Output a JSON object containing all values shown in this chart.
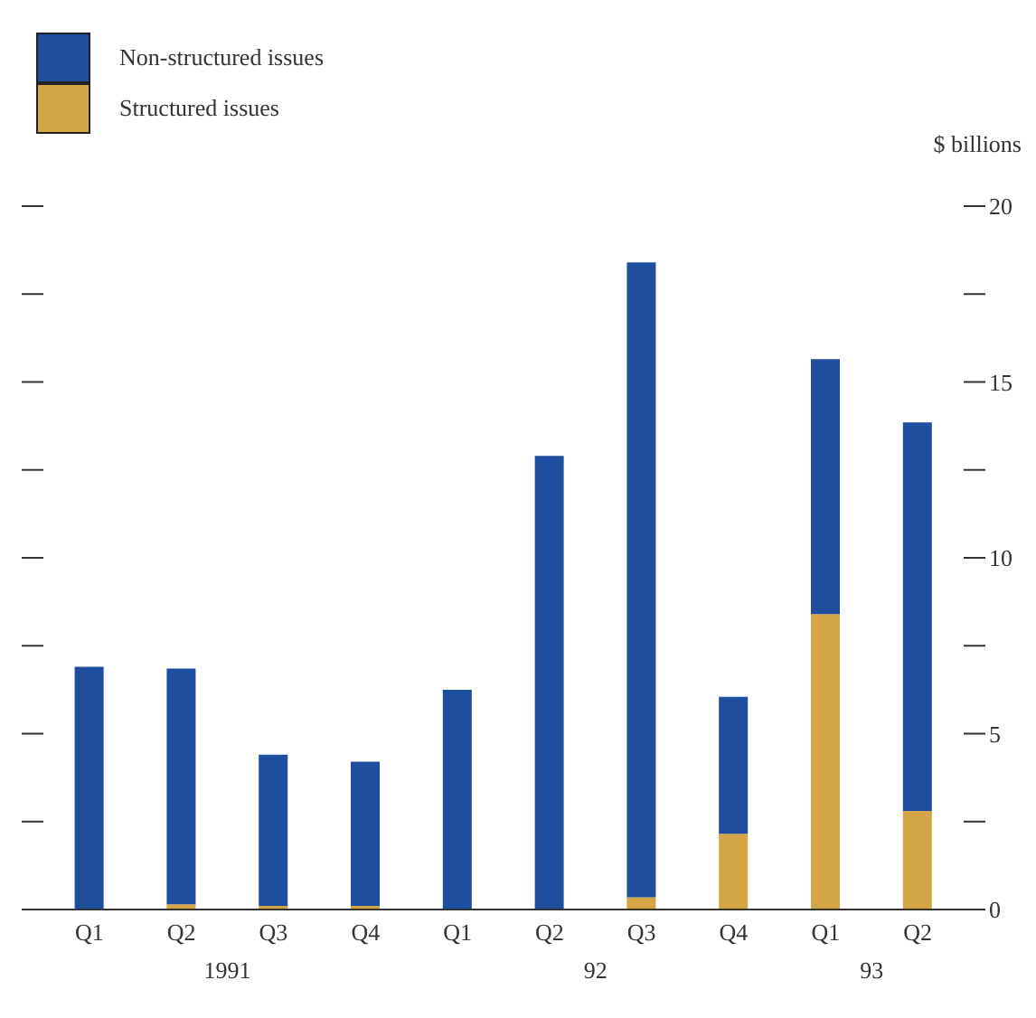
{
  "chart_data": {
    "type": "bar",
    "stacked": true,
    "ylabel": "$ billions",
    "categories": [
      "Q1",
      "Q2",
      "Q3",
      "Q4",
      "Q1",
      "Q2",
      "Q3",
      "Q4",
      "Q1",
      "Q2"
    ],
    "series": [
      {
        "name": "Structured issues",
        "color": "#d4a544",
        "values": [
          0,
          0.15,
          0.1,
          0.1,
          0,
          0,
          0.35,
          2.15,
          8.4,
          2.8
        ]
      },
      {
        "name": "Non-structured issues",
        "color": "#1f4e9e",
        "values": [
          6.9,
          6.7,
          4.3,
          4.1,
          6.25,
          12.9,
          18.05,
          3.9,
          7.25,
          11.05
        ]
      }
    ],
    "ylim": [
      0,
      20
    ],
    "yticks": [
      0,
      {
        "value": 2.5,
        "label": null
      },
      5,
      {
        "value": 7.5,
        "label": null
      },
      10,
      {
        "value": 12.5,
        "label": null
      },
      15,
      {
        "value": 17.5,
        "label": null
      },
      20
    ],
    "annotations": [
      "1991",
      "92",
      "93"
    ],
    "legend": "top left",
    "grid": false
  }
}
